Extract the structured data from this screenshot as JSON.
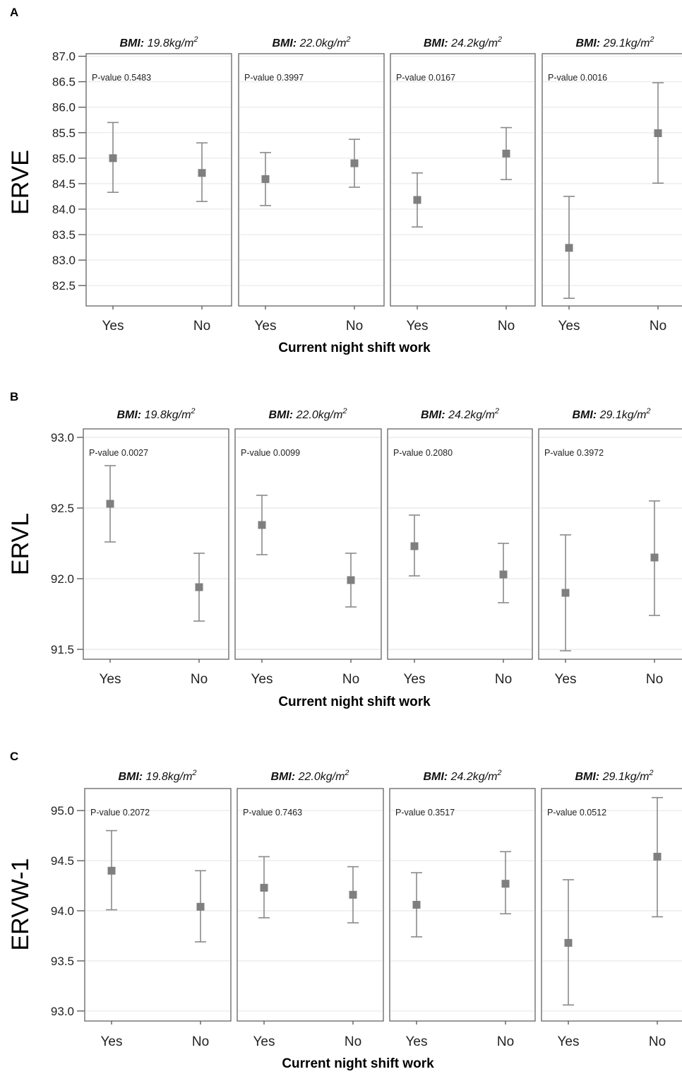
{
  "x_label": "Current night shift work",
  "chart_data": [
    {
      "panel": "A",
      "type": "scatter",
      "ylabel": "ERVE",
      "ylim": [
        82.1,
        87.05
      ],
      "yticks": [
        "87.0",
        "86.5",
        "86.0",
        "85.5",
        "85.0",
        "84.5",
        "84.0",
        "83.5",
        "83.0",
        "82.5"
      ],
      "categories": [
        "Yes",
        "No"
      ],
      "grid": true,
      "facets": [
        {
          "bmi_prefix": "BMI:",
          "bmi_value": "19.8kg/m",
          "bmi_exp": "2",
          "pvalue": "P-value 0.5483",
          "points": [
            {
              "x": "Yes",
              "y": 85.0,
              "lo": 84.33,
              "hi": 85.7
            },
            {
              "x": "No",
              "y": 84.71,
              "lo": 84.15,
              "hi": 85.3
            }
          ]
        },
        {
          "bmi_prefix": "BMI:",
          "bmi_value": "22.0kg/m",
          "bmi_exp": "2",
          "pvalue": "P-value 0.3997",
          "points": [
            {
              "x": "Yes",
              "y": 84.59,
              "lo": 84.07,
              "hi": 85.11
            },
            {
              "x": "No",
              "y": 84.9,
              "lo": 84.43,
              "hi": 85.37
            }
          ]
        },
        {
          "bmi_prefix": "BMI:",
          "bmi_value": "24.2kg/m",
          "bmi_exp": "2",
          "pvalue": "P-value 0.0167",
          "points": [
            {
              "x": "Yes",
              "y": 84.18,
              "lo": 83.65,
              "hi": 84.71
            },
            {
              "x": "No",
              "y": 85.09,
              "lo": 84.58,
              "hi": 85.6
            }
          ]
        },
        {
          "bmi_prefix": "BMI:",
          "bmi_value": "29.1kg/m",
          "bmi_exp": "2",
          "pvalue": "P-value 0.0016",
          "points": [
            {
              "x": "Yes",
              "y": 83.24,
              "lo": 82.25,
              "hi": 84.25
            },
            {
              "x": "No",
              "y": 85.49,
              "lo": 84.51,
              "hi": 86.48
            }
          ]
        }
      ]
    },
    {
      "panel": "B",
      "type": "scatter",
      "ylabel": "ERVL",
      "ylim": [
        91.43,
        93.06
      ],
      "yticks": [
        "93.0",
        "92.5",
        "92.0",
        "91.5"
      ],
      "categories": [
        "Yes",
        "No"
      ],
      "grid": true,
      "facets": [
        {
          "bmi_prefix": "BMI:",
          "bmi_value": "19.8kg/m",
          "bmi_exp": "2",
          "pvalue": "P-value 0.0027",
          "points": [
            {
              "x": "Yes",
              "y": 92.53,
              "lo": 92.26,
              "hi": 92.8
            },
            {
              "x": "No",
              "y": 91.94,
              "lo": 91.7,
              "hi": 92.18
            }
          ]
        },
        {
          "bmi_prefix": "BMI:",
          "bmi_value": "22.0kg/m",
          "bmi_exp": "2",
          "pvalue": "P-value 0.0099",
          "points": [
            {
              "x": "Yes",
              "y": 92.38,
              "lo": 92.17,
              "hi": 92.59
            },
            {
              "x": "No",
              "y": 91.99,
              "lo": 91.8,
              "hi": 92.18
            }
          ]
        },
        {
          "bmi_prefix": "BMI:",
          "bmi_value": "24.2kg/m",
          "bmi_exp": "2",
          "pvalue": "P-value 0.2080",
          "points": [
            {
              "x": "Yes",
              "y": 92.23,
              "lo": 92.02,
              "hi": 92.45
            },
            {
              "x": "No",
              "y": 92.03,
              "lo": 91.83,
              "hi": 92.25
            }
          ]
        },
        {
          "bmi_prefix": "BMI:",
          "bmi_value": "29.1kg/m",
          "bmi_exp": "2",
          "pvalue": "P-value 0.3972",
          "points": [
            {
              "x": "Yes",
              "y": 91.9,
              "lo": 91.49,
              "hi": 92.31
            },
            {
              "x": "No",
              "y": 92.15,
              "lo": 91.74,
              "hi": 92.55
            }
          ]
        }
      ]
    },
    {
      "panel": "C",
      "type": "scatter",
      "ylabel": "ERVW-1",
      "ylim": [
        92.9,
        95.22
      ],
      "yticks": [
        "95.0",
        "94.5",
        "94.0",
        "93.5",
        "93.0"
      ],
      "categories": [
        "Yes",
        "No"
      ],
      "grid": true,
      "facets": [
        {
          "bmi_prefix": "BMI:",
          "bmi_value": "19.8kg/m",
          "bmi_exp": "2",
          "pvalue": "P-value 0.2072",
          "points": [
            {
              "x": "Yes",
              "y": 94.4,
              "lo": 94.01,
              "hi": 94.8
            },
            {
              "x": "No",
              "y": 94.04,
              "lo": 93.69,
              "hi": 94.4
            }
          ]
        },
        {
          "bmi_prefix": "BMI:",
          "bmi_value": "22.0kg/m",
          "bmi_exp": "2",
          "pvalue": "P-value 0.7463",
          "points": [
            {
              "x": "Yes",
              "y": 94.23,
              "lo": 93.93,
              "hi": 94.54
            },
            {
              "x": "No",
              "y": 94.16,
              "lo": 93.88,
              "hi": 94.44
            }
          ]
        },
        {
          "bmi_prefix": "BMI:",
          "bmi_value": "24.2kg/m",
          "bmi_exp": "2",
          "pvalue": "P-value 0.3517",
          "points": [
            {
              "x": "Yes",
              "y": 94.06,
              "lo": 93.74,
              "hi": 94.38
            },
            {
              "x": "No",
              "y": 94.27,
              "lo": 93.97,
              "hi": 94.59
            }
          ]
        },
        {
          "bmi_prefix": "BMI:",
          "bmi_value": "29.1kg/m",
          "bmi_exp": "2",
          "pvalue": "P-value 0.0512",
          "points": [
            {
              "x": "Yes",
              "y": 93.68,
              "lo": 93.06,
              "hi": 94.31
            },
            {
              "x": "No",
              "y": 94.54,
              "lo": 93.94,
              "hi": 95.13
            }
          ]
        }
      ]
    }
  ]
}
